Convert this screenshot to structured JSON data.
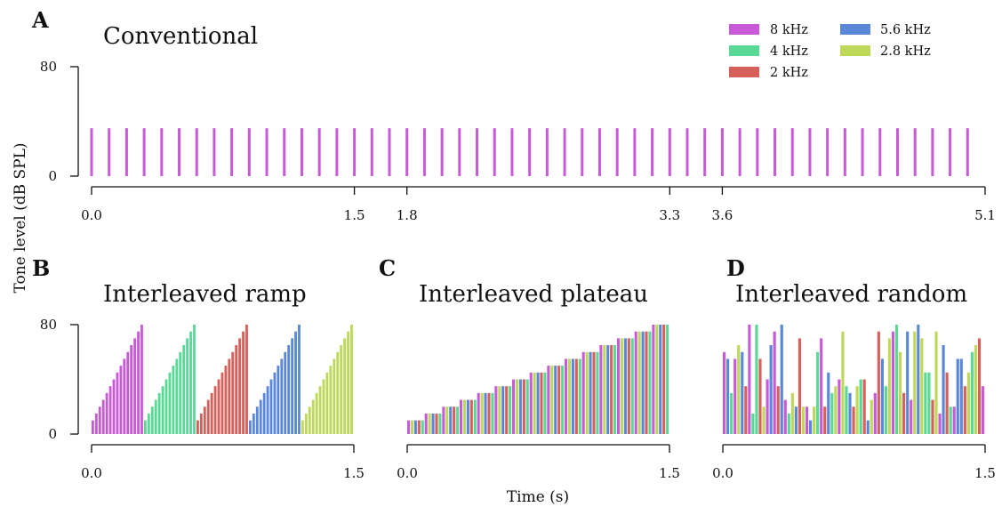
{
  "figure": {
    "ylabel": "Tone level (dB SPL)",
    "xlabel": "Time (s)"
  },
  "legend": {
    "entries": [
      {
        "label": "8 kHz",
        "color": "#c85ad8"
      },
      {
        "label": "5.6 kHz",
        "color": "#5a87d8"
      },
      {
        "label": "4 kHz",
        "color": "#5ad896"
      },
      {
        "label": "2.8 kHz",
        "color": "#bed85a"
      },
      {
        "label": "2 kHz",
        "color": "#d8605a"
      }
    ]
  },
  "panels": {
    "A": {
      "letter": "A",
      "title": "Conventional"
    },
    "B": {
      "letter": "B",
      "title": "Interleaved ramp"
    },
    "C": {
      "letter": "C",
      "title": "Interleaved plateau"
    },
    "D": {
      "letter": "D",
      "title": "Interleaved random"
    }
  },
  "chart_data": [
    {
      "id": "A",
      "type": "bar",
      "title": "Conventional",
      "xlim": [
        0,
        5.1
      ],
      "ylim": [
        0,
        80
      ],
      "xticks": [
        "0.0",
        "1.5",
        "1.8",
        "3.3",
        "3.6",
        "5.1"
      ],
      "xtick_values": [
        0,
        1.5,
        1.8,
        3.3,
        3.6,
        5.1
      ],
      "yticks": [
        "0",
        "80"
      ],
      "series": [
        {
          "name": "8 kHz",
          "color": "#c85ad8",
          "t_start": 0,
          "t_step": 0.1,
          "count": 51,
          "level_db": 35
        }
      ]
    },
    {
      "id": "B",
      "type": "bar",
      "title": "Interleaved ramp",
      "xlim": [
        0,
        1.5
      ],
      "ylim": [
        0,
        80
      ],
      "xticks": [
        "0.0",
        "1.5"
      ],
      "xtick_values": [
        0,
        1.5
      ],
      "yticks": [
        "0",
        "80"
      ],
      "groups": [
        {
          "name": "8 kHz",
          "color": "#c85ad8"
        },
        {
          "name": "4 kHz",
          "color": "#5ad896"
        },
        {
          "name": "2 kHz",
          "color": "#d8605a"
        },
        {
          "name": "5.6 kHz",
          "color": "#5a87d8"
        },
        {
          "name": "2.8 kHz",
          "color": "#bed85a"
        }
      ],
      "levels_db": [
        10,
        15,
        20,
        25,
        30,
        35,
        40,
        45,
        50,
        55,
        60,
        65,
        70,
        75,
        80
      ]
    },
    {
      "id": "C",
      "type": "bar",
      "title": "Interleaved plateau",
      "xlim": [
        0,
        1.5
      ],
      "ylim": [
        0,
        80
      ],
      "xticks": [
        "0.0",
        "1.5"
      ],
      "xtick_values": [
        0,
        1.5
      ],
      "yticks": [
        "0",
        "80"
      ],
      "cycle": [
        {
          "name": "8 kHz",
          "color": "#c85ad8"
        },
        {
          "name": "2.8 kHz",
          "color": "#bed85a"
        },
        {
          "name": "5.6 kHz",
          "color": "#5a87d8"
        },
        {
          "name": "2 kHz",
          "color": "#d8605a"
        },
        {
          "name": "4 kHz",
          "color": "#5ad896"
        }
      ],
      "levels_db": [
        10,
        15,
        20,
        25,
        30,
        35,
        40,
        45,
        50,
        55,
        60,
        65,
        70,
        75,
        80
      ]
    },
    {
      "id": "D",
      "type": "bar",
      "title": "Interleaved random",
      "xlim": [
        0,
        1.5
      ],
      "ylim": [
        0,
        80
      ],
      "xticks": [
        "0.0",
        "1.5"
      ],
      "xtick_values": [
        0,
        1.5
      ],
      "yticks": [
        "0",
        "80"
      ],
      "bars": [
        {
          "freq": "8 kHz",
          "color": "#c85ad8",
          "level_db": 60
        },
        {
          "freq": "5.6 kHz",
          "color": "#5a87d8",
          "level_db": 55
        },
        {
          "freq": "4 kHz",
          "color": "#5ad896",
          "level_db": 30
        },
        {
          "freq": "8 kHz",
          "color": "#c85ad8",
          "level_db": 55
        },
        {
          "freq": "2.8 kHz",
          "color": "#bed85a",
          "level_db": 65
        },
        {
          "freq": "5.6 kHz",
          "color": "#5a87d8",
          "level_db": 60
        },
        {
          "freq": "2 kHz",
          "color": "#d8605a",
          "level_db": 35
        },
        {
          "freq": "8 kHz",
          "color": "#c85ad8",
          "level_db": 80
        },
        {
          "freq": "4 kHz",
          "color": "#5ad896",
          "level_db": 15
        },
        {
          "freq": "4 kHz",
          "color": "#5ad896",
          "level_db": 80
        },
        {
          "freq": "2 kHz",
          "color": "#d8605a",
          "level_db": 55
        },
        {
          "freq": "2.8 kHz",
          "color": "#bed85a",
          "level_db": 20
        },
        {
          "freq": "8 kHz",
          "color": "#c85ad8",
          "level_db": 40
        },
        {
          "freq": "5.6 kHz",
          "color": "#5a87d8",
          "level_db": 65
        },
        {
          "freq": "8 kHz",
          "color": "#c85ad8",
          "level_db": 75
        },
        {
          "freq": "2 kHz",
          "color": "#d8605a",
          "level_db": 35
        },
        {
          "freq": "5.6 kHz",
          "color": "#5a87d8",
          "level_db": 80
        },
        {
          "freq": "8 kHz",
          "color": "#c85ad8",
          "level_db": 25
        },
        {
          "freq": "4 kHz",
          "color": "#5ad896",
          "level_db": 15
        },
        {
          "freq": "2.8 kHz",
          "color": "#bed85a",
          "level_db": 30
        },
        {
          "freq": "5.6 kHz",
          "color": "#5a87d8",
          "level_db": 20
        },
        {
          "freq": "2 kHz",
          "color": "#d8605a",
          "level_db": 70
        },
        {
          "freq": "2.8 kHz",
          "color": "#bed85a",
          "level_db": 20
        },
        {
          "freq": "8 kHz",
          "color": "#c85ad8",
          "level_db": 20
        },
        {
          "freq": "5.6 kHz",
          "color": "#5a87d8",
          "level_db": 10
        },
        {
          "freq": "2.8 kHz",
          "color": "#bed85a",
          "level_db": 20
        },
        {
          "freq": "4 kHz",
          "color": "#5ad896",
          "level_db": 60
        },
        {
          "freq": "8 kHz",
          "color": "#c85ad8",
          "level_db": 70
        },
        {
          "freq": "2 kHz",
          "color": "#d8605a",
          "level_db": 20
        },
        {
          "freq": "5.6 kHz",
          "color": "#5a87d8",
          "level_db": 45
        },
        {
          "freq": "4 kHz",
          "color": "#5ad896",
          "level_db": 30
        },
        {
          "freq": "2.8 kHz",
          "color": "#bed85a",
          "level_db": 35
        },
        {
          "freq": "8 kHz",
          "color": "#c85ad8",
          "level_db": 40
        },
        {
          "freq": "2.8 kHz",
          "color": "#bed85a",
          "level_db": 75
        },
        {
          "freq": "4 kHz",
          "color": "#5ad896",
          "level_db": 35
        },
        {
          "freq": "5.6 kHz",
          "color": "#5a87d8",
          "level_db": 30
        },
        {
          "freq": "2 kHz",
          "color": "#d8605a",
          "level_db": 20
        },
        {
          "freq": "2.8 kHz",
          "color": "#bed85a",
          "level_db": 35
        },
        {
          "freq": "4 kHz",
          "color": "#5ad896",
          "level_db": 40
        },
        {
          "freq": "2 kHz",
          "color": "#d8605a",
          "level_db": 40
        },
        {
          "freq": "5.6 kHz",
          "color": "#5a87d8",
          "level_db": 10
        },
        {
          "freq": "2.8 kHz",
          "color": "#bed85a",
          "level_db": 25
        },
        {
          "freq": "8 kHz",
          "color": "#c85ad8",
          "level_db": 30
        },
        {
          "freq": "2 kHz",
          "color": "#d8605a",
          "level_db": 75
        },
        {
          "freq": "5.6 kHz",
          "color": "#5a87d8",
          "level_db": 55
        },
        {
          "freq": "4 kHz",
          "color": "#5ad896",
          "level_db": 35
        },
        {
          "freq": "2.8 kHz",
          "color": "#bed85a",
          "level_db": 70
        },
        {
          "freq": "8 kHz",
          "color": "#c85ad8",
          "level_db": 75
        },
        {
          "freq": "4 kHz",
          "color": "#5ad896",
          "level_db": 80
        },
        {
          "freq": "2.8 kHz",
          "color": "#bed85a",
          "level_db": 60
        },
        {
          "freq": "2 kHz",
          "color": "#d8605a",
          "level_db": 30
        },
        {
          "freq": "5.6 kHz",
          "color": "#5a87d8",
          "level_db": 75
        },
        {
          "freq": "8 kHz",
          "color": "#c85ad8",
          "level_db": 25
        },
        {
          "freq": "2.8 kHz",
          "color": "#bed85a",
          "level_db": 75
        },
        {
          "freq": "5.6 kHz",
          "color": "#5a87d8",
          "level_db": 80
        },
        {
          "freq": "2.8 kHz",
          "color": "#bed85a",
          "level_db": 70
        },
        {
          "freq": "4 kHz",
          "color": "#5ad896",
          "level_db": 45
        },
        {
          "freq": "4 kHz",
          "color": "#5ad896",
          "level_db": 45
        },
        {
          "freq": "2 kHz",
          "color": "#d8605a",
          "level_db": 25
        },
        {
          "freq": "2.8 kHz",
          "color": "#bed85a",
          "level_db": 75
        },
        {
          "freq": "8 kHz",
          "color": "#c85ad8",
          "level_db": 15
        },
        {
          "freq": "5.6 kHz",
          "color": "#5a87d8",
          "level_db": 65
        },
        {
          "freq": "2 kHz",
          "color": "#d8605a",
          "level_db": 45
        },
        {
          "freq": "4 kHz",
          "color": "#5ad896",
          "level_db": 20
        },
        {
          "freq": "8 kHz",
          "color": "#c85ad8",
          "level_db": 20
        },
        {
          "freq": "5.6 kHz",
          "color": "#5a87d8",
          "level_db": 55
        },
        {
          "freq": "5.6 kHz",
          "color": "#5a87d8",
          "level_db": 55
        },
        {
          "freq": "2 kHz",
          "color": "#d8605a",
          "level_db": 35
        },
        {
          "freq": "2.8 kHz",
          "color": "#bed85a",
          "level_db": 45
        },
        {
          "freq": "4 kHz",
          "color": "#5ad896",
          "level_db": 60
        },
        {
          "freq": "2.8 kHz",
          "color": "#bed85a",
          "level_db": 65
        },
        {
          "freq": "2 kHz",
          "color": "#d8605a",
          "level_db": 70
        },
        {
          "freq": "8 kHz",
          "color": "#c85ad8",
          "level_db": 35
        }
      ]
    }
  ]
}
